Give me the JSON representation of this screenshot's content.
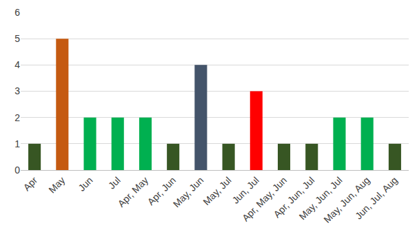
{
  "chart_data": {
    "type": "bar",
    "categories": [
      "Apr",
      "May",
      "Jun",
      "Jul",
      "Apr, May",
      "Apr, Jun",
      "May, Jun",
      "May, Jul",
      "Jun, Jul",
      "Apr, May, Jun",
      "Apr, Jun, Jul",
      "May, Jun, Jul",
      "May, Jun, Aug",
      "Jun, Jul, Aug"
    ],
    "values": [
      1,
      5,
      2,
      2,
      2,
      1,
      4,
      1,
      3,
      1,
      1,
      2,
      2,
      1
    ],
    "colors": [
      "#375623",
      "#c55a11",
      "#00b050",
      "#00b050",
      "#00b050",
      "#375623",
      "#44546a",
      "#375623",
      "#ff0000",
      "#375623",
      "#375623",
      "#00b050",
      "#00b050",
      "#375623"
    ],
    "ylim": [
      0,
      6
    ],
    "yticks": [
      0,
      1,
      2,
      3,
      4,
      5,
      6
    ],
    "grid": true
  }
}
